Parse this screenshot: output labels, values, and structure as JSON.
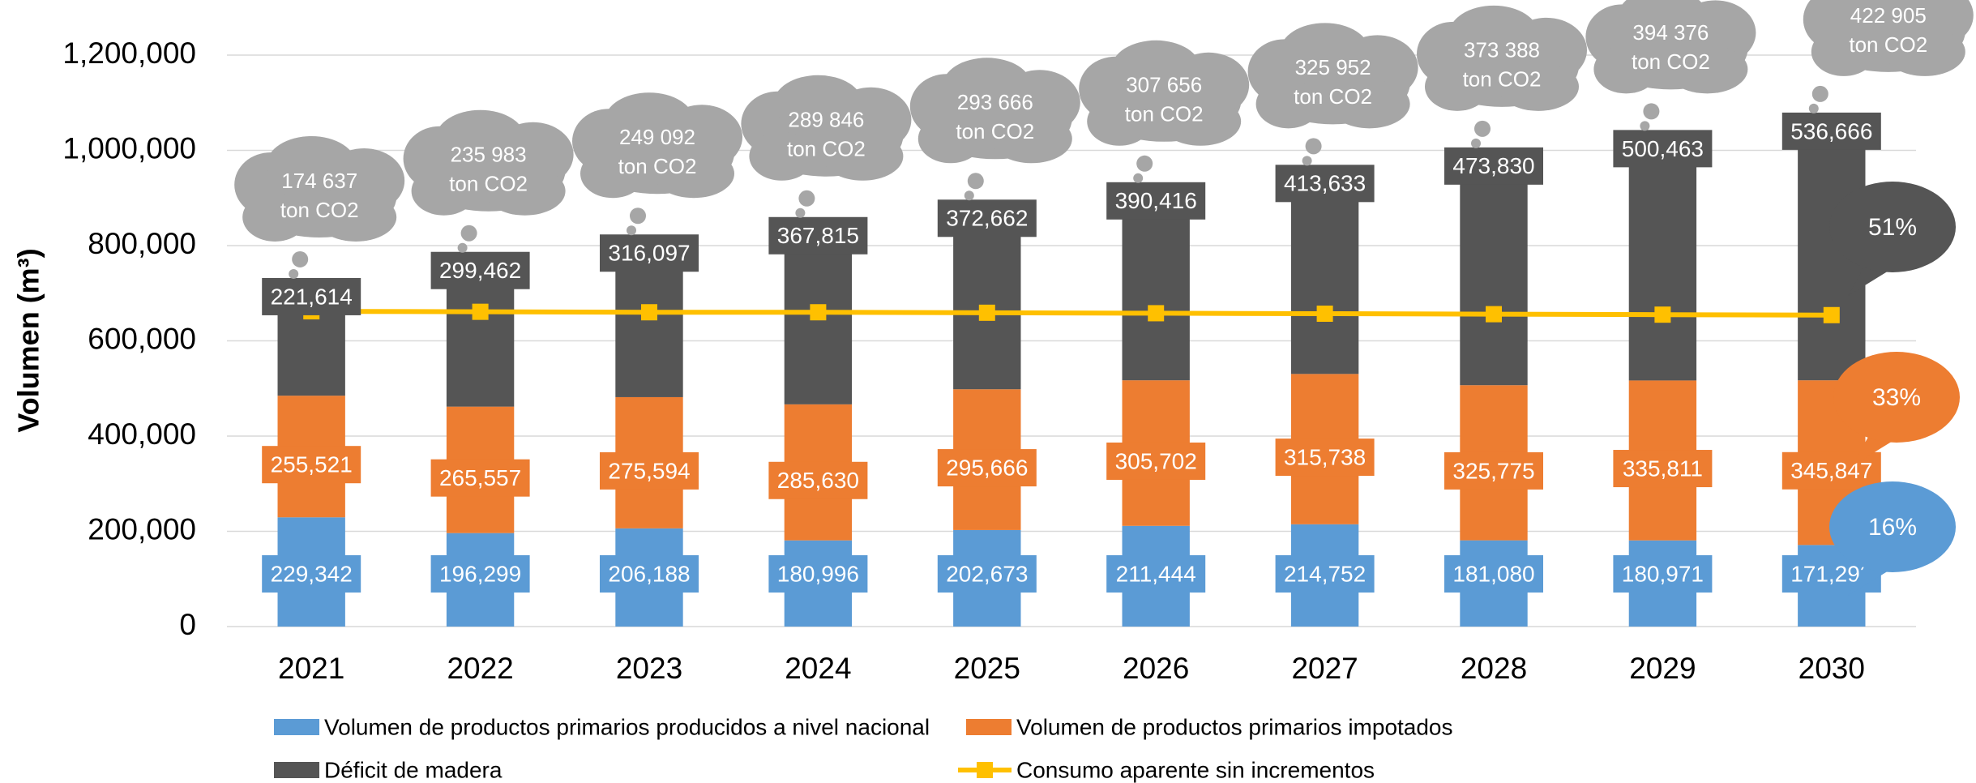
{
  "chart_data": {
    "type": "stacked_bar",
    "y_label": "Volumen (m³)",
    "categories": [
      "2021",
      "2022",
      "2023",
      "2024",
      "2025",
      "2026",
      "2027",
      "2028",
      "2029",
      "2030"
    ],
    "series": [
      {
        "name": "Volumen de productos primarios producidos a nivel nacional",
        "color": "#5b9bd5",
        "values": [
          229342,
          196299,
          206188,
          180996,
          202673,
          211444,
          214752,
          181080,
          180971,
          171293
        ],
        "value_labels": [
          "229,342",
          "196,299",
          "206,188",
          "180,996",
          "202,673",
          "211,444",
          "214,752",
          "181,080",
          "180,971",
          "171,293"
        ]
      },
      {
        "name": "Volumen de productos primarios impotados",
        "color": "#ed7d31",
        "values": [
          255521,
          265557,
          275594,
          285630,
          295666,
          305702,
          315738,
          325775,
          335811,
          345847
        ],
        "value_labels": [
          "255,521",
          "265,557",
          "275,594",
          "285,630",
          "295,666",
          "305,702",
          "315,738",
          "325,775",
          "335,811",
          "345,847"
        ]
      },
      {
        "name": "Déficit de madera",
        "color": "#555555",
        "values": [
          221614,
          299462,
          316097,
          367815,
          372662,
          390416,
          413633,
          473830,
          500463,
          536666
        ],
        "value_labels": [
          "221,614",
          "299,462",
          "316,097",
          "367,815",
          "372,662",
          "390,416",
          "413,633",
          "473,830",
          "500,463",
          "536,666"
        ]
      },
      {
        "name": "Consumo aparente sin incrementos",
        "color": "#ffc000",
        "kind": "line",
        "values": [
          662000,
          661000,
          660000,
          660000,
          659000,
          658000,
          657000,
          656000,
          655000,
          654000
        ]
      }
    ],
    "co2_labels": [
      "174 637",
      "235 983",
      "249 092",
      "289 846",
      "293 666",
      "307 656",
      "325 952",
      "373 388",
      "394 376",
      "422 905"
    ],
    "co2_unit": "ton CO2",
    "callouts": [
      "51%",
      "33%",
      "16%"
    ],
    "ylim": [
      0,
      1200000
    ],
    "yticks": [
      {
        "value": 0,
        "label": "0"
      },
      {
        "value": 200000,
        "label": "200,000"
      },
      {
        "value": 400000,
        "label": "400,000"
      },
      {
        "value": 600000,
        "label": "600,000"
      },
      {
        "value": 800000,
        "label": "800,000"
      },
      {
        "value": 1000000,
        "label": "1,000,000"
      },
      {
        "value": 1200000,
        "label": "1,200,000"
      }
    ],
    "grid": true
  }
}
